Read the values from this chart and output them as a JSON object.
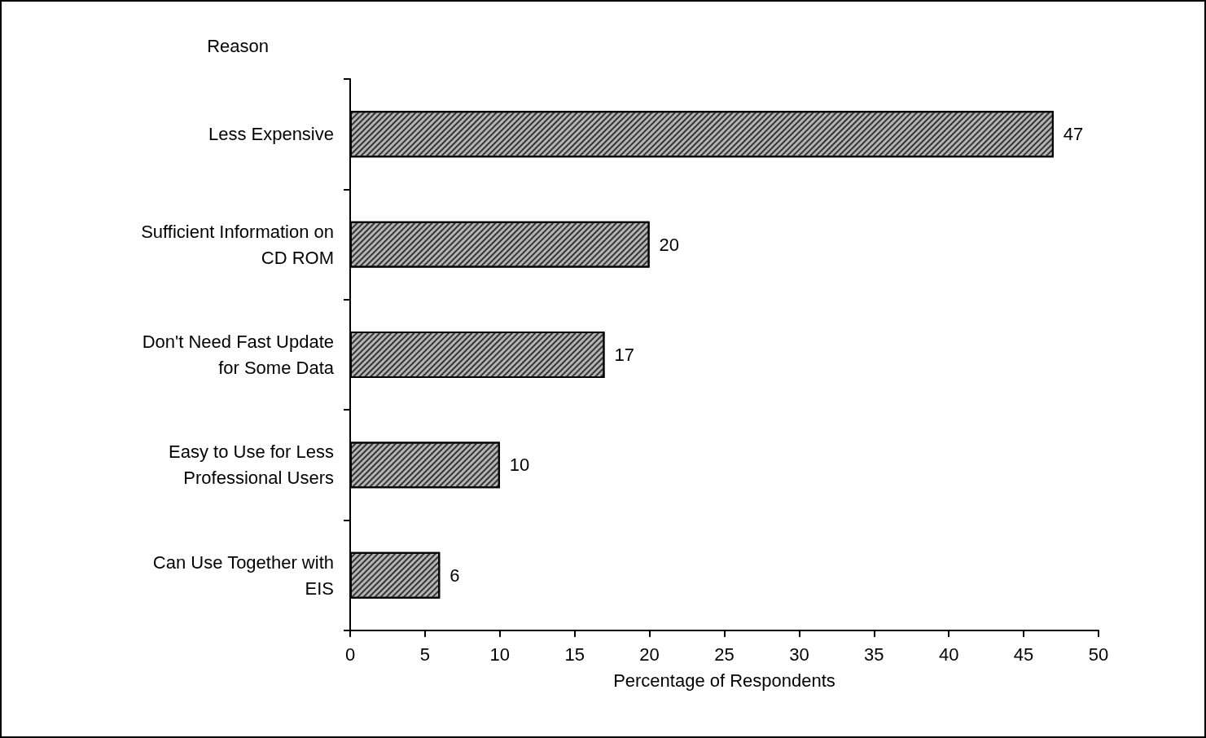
{
  "chart_data": {
    "type": "bar",
    "orientation": "horizontal",
    "ylabel": "Reason",
    "xlabel": "Percentage of Respondents",
    "categories": [
      "Less Expensive",
      "Sufficient Information on\nCD ROM",
      "Don't Need Fast Update\nfor Some Data",
      "Easy to Use for Less\nProfessional Users",
      "Can Use Together with\nEIS"
    ],
    "values": [
      47,
      20,
      17,
      10,
      6
    ],
    "color": "#b4b4b4",
    "xlim": [
      0,
      50
    ],
    "xticks": [
      0,
      5,
      10,
      15,
      20,
      25,
      30,
      35,
      40,
      45,
      50
    ],
    "data_labels": true,
    "grid": false
  }
}
